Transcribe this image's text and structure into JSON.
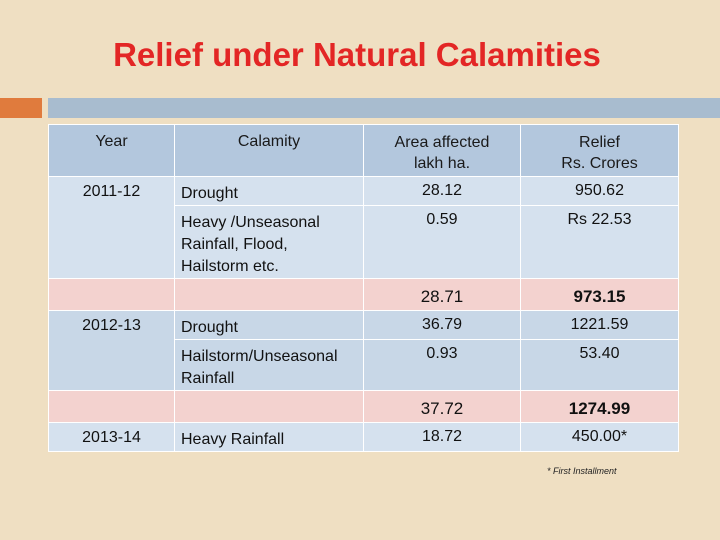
{
  "title": "Relief under Natural Calamities",
  "table": {
    "headers": {
      "year": "Year",
      "calamity": "Calamity",
      "area_line1": "Area affected",
      "area_line2": "lakh ha.",
      "relief_line1": "Relief",
      "relief_line2": "Rs. Crores"
    },
    "rows": [
      {
        "year": "2011-12",
        "calamity": "Drought",
        "area": "28.12",
        "relief": "950.62"
      },
      {
        "year": "",
        "calamity": "Heavy /Unseasonal Rainfall, Flood, Hailstorm etc.",
        "area": "0.59",
        "relief": "Rs 22.53"
      },
      {
        "year": "",
        "calamity": "",
        "area": "28.71",
        "relief": "973.15",
        "total": true
      },
      {
        "year": "2012-13",
        "calamity": "Drought",
        "area": "36.79",
        "relief": "1221.59"
      },
      {
        "year": "",
        "calamity": "Hailstorm/Unseasonal Rainfall",
        "area": "0.93",
        "relief": "53.40"
      },
      {
        "year": "",
        "calamity": "",
        "area": "37.72",
        "relief": "1274.99",
        "total": true
      },
      {
        "year": "2013-14",
        "calamity": "Heavy Rainfall",
        "area": "18.72",
        "relief": "450.00*"
      }
    ]
  },
  "footnote": "* First Installment",
  "colors": {
    "title": "#e32625",
    "background": "#efdfc2",
    "header": "#b3c7dd",
    "row": "#d5e1ee",
    "total_row": "#f3d2cf",
    "accent_orange": "#e07b3d",
    "accent_blue": "#a8bccf"
  }
}
